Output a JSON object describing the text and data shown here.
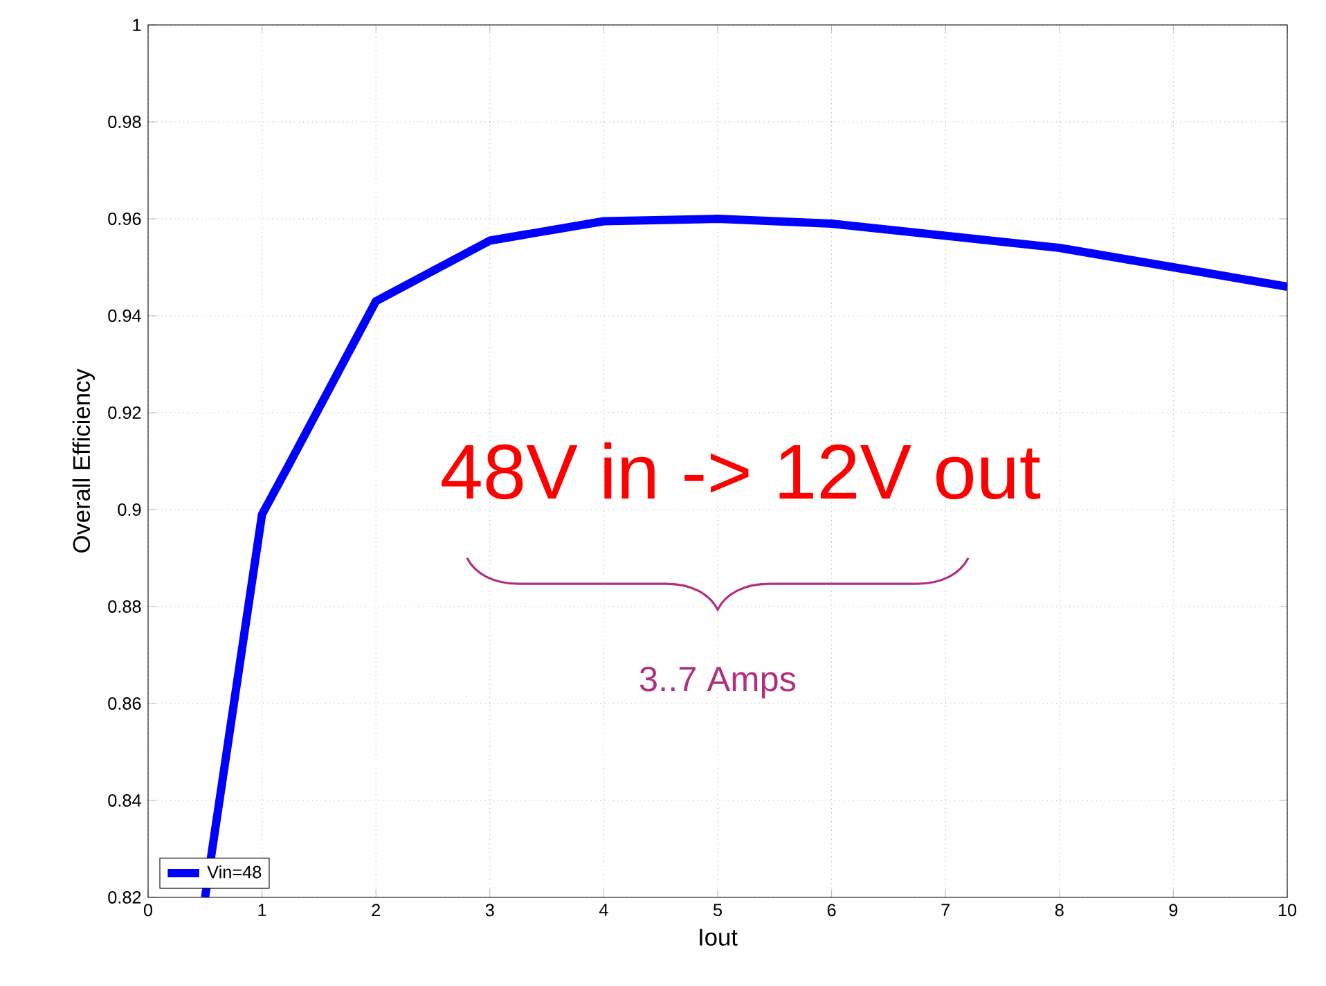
{
  "chart_data": {
    "type": "line",
    "xlabel": "Iout",
    "ylabel": "Overall Efficiency",
    "x": [
      0.5,
      1,
      1.23,
      2,
      3,
      4,
      5,
      6,
      7,
      8,
      9,
      10
    ],
    "series": [
      {
        "name": "Vin=48",
        "color": "#0000ff",
        "values": [
          0.82,
          0.899,
          0.909,
          0.943,
          0.9555,
          0.9595,
          0.96,
          0.959,
          0.9565,
          0.954,
          0.95,
          0.946
        ]
      }
    ],
    "xlim": [
      0,
      10
    ],
    "ylim": [
      0.82,
      1
    ],
    "xticks": [
      0,
      1,
      2,
      3,
      4,
      5,
      6,
      7,
      8,
      9,
      10
    ],
    "yticks": [
      0.82,
      0.84,
      0.86,
      0.88,
      0.9,
      0.92,
      0.94,
      0.96,
      0.98,
      1
    ],
    "grid": true,
    "legend": "bottom left",
    "marker": "none",
    "line_style": "solid",
    "annotations": [
      "48V in -> 12V out",
      "3..7 Amps"
    ]
  }
}
